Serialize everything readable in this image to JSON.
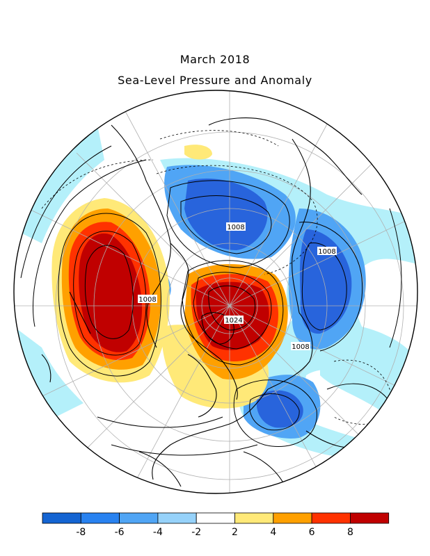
{
  "header": {
    "title": "March 2018",
    "subtitle": "Sea-Level Pressure and Anomaly"
  },
  "isobar_labels": [
    {
      "id": "c1",
      "text": "1008"
    },
    {
      "id": "c2",
      "text": "1008"
    },
    {
      "id": "c3",
      "text": "1008"
    },
    {
      "id": "c4",
      "text": "1024"
    },
    {
      "id": "c5",
      "text": "1008"
    }
  ],
  "legend": {
    "colors": [
      "#1464d2",
      "#2882f0",
      "#50a5f5",
      "#96d2fa",
      "#ffffff",
      "#ffe978",
      "#ffa000",
      "#ff3200",
      "#c00000"
    ],
    "tick_labels": [
      "-8",
      "-6",
      "-4",
      "-2",
      "2",
      "4",
      "6",
      "8"
    ]
  },
  "palette": {
    "strong_negative": "#2864dc",
    "negative": "#50a5f5",
    "weak_negative": "#b4f0fa",
    "weak_positive": "#ffe978",
    "positive": "#ffa000",
    "strong_positive": "#ff3200",
    "extreme_positive": "#c00000"
  }
}
